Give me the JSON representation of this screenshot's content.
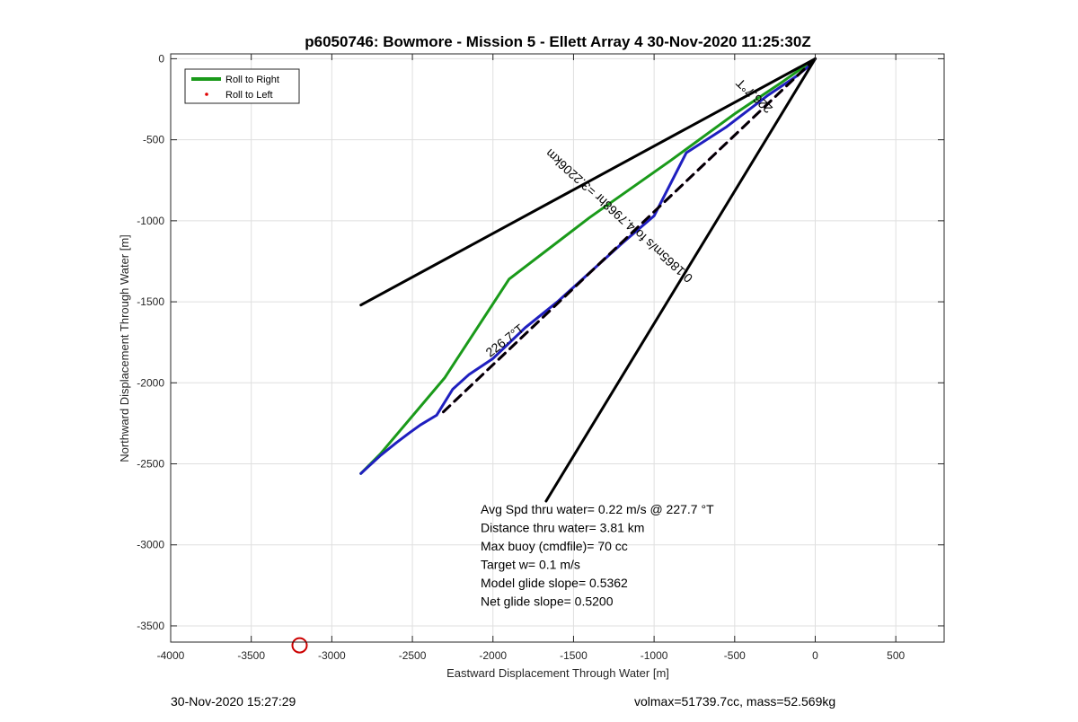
{
  "footer": {
    "timestamp": "30-Nov-2020 15:27:29",
    "volmax_mass": "volmax=51739.7cc, mass=52.569kg"
  },
  "chart_data": {
    "type": "line",
    "title": "p6050746: Bowmore - Mission 5 - Ellett Array 4 30-Nov-2020 11:25:30Z",
    "xlabel": "Eastward Displacement Through Water [m]",
    "ylabel": "Northward Displacement Through Water [m]",
    "xlim": [
      -4000,
      800
    ],
    "ylim": [
      -3600,
      30
    ],
    "xticks": [
      -4000,
      -3500,
      -3000,
      -2500,
      -2000,
      -1500,
      -1000,
      -500,
      0,
      500
    ],
    "yticks": [
      0,
      -500,
      -1000,
      -1500,
      -2000,
      -2500,
      -3000,
      -3500
    ],
    "grid": true,
    "legend": {
      "position": "top-left",
      "entries": [
        {
          "label": "Roll to Right",
          "color": "#1a9a1a",
          "style": "line"
        },
        {
          "label": "Roll to Left",
          "color": "#e00000",
          "style": "dot"
        }
      ]
    },
    "series": [
      {
        "color": "#1a9a1a",
        "style": "solid",
        "x": [
          0,
          -200,
          -500,
          -900,
          -1400,
          -1900,
          -2300,
          -2700,
          -2820
        ],
        "y": [
          0,
          -140,
          -340,
          -630,
          -980,
          -1360,
          -1970,
          -2440,
          -2560
        ]
      },
      {
        "color": "#1f1fbf",
        "style": "solid",
        "x": [
          0,
          -20,
          -120,
          -300,
          -550,
          -800,
          -1000,
          -1200,
          -1400,
          -1600,
          -1800,
          -2000,
          -2150,
          -2250,
          -2350,
          -2450,
          -2520,
          -2600,
          -2700,
          -2820
        ],
        "y": [
          0,
          -30,
          -110,
          -230,
          -420,
          -580,
          -970,
          -1140,
          -1320,
          -1500,
          -1660,
          -1850,
          -1950,
          -2040,
          -2200,
          -2260,
          -2310,
          -2370,
          -2450,
          -2560
        ]
      },
      {
        "color": "#d900d9",
        "style": "dashed",
        "x": [
          0,
          -2330
        ],
        "y": [
          0,
          -2200
        ]
      },
      {
        "color": "#000000",
        "style": "dashed",
        "x": [
          0,
          -2330
        ],
        "y": [
          0,
          -2200
        ]
      },
      {
        "color": "#000000",
        "style": "solid",
        "x": [
          -2820,
          0,
          -1670
        ],
        "y": [
          -1520,
          0,
          -2730
        ]
      }
    ],
    "markers": [
      {
        "x": -3200,
        "y": -3620,
        "color": "#cc0000",
        "shape": "circle"
      }
    ],
    "annotations": [
      {
        "text": "226.7°T",
        "x": -360,
        "y": -210,
        "rotation": 223,
        "color": "#000000"
      },
      {
        "text": "0.1865m/s for4.7968hr =3.2206km",
        "x": -1200,
        "y": -950,
        "rotation": 222,
        "color": "#000000"
      },
      {
        "text": "226.7°T",
        "x": -1910,
        "y": -1760,
        "rotation": -38,
        "color": "#000000"
      }
    ],
    "text_block": [
      "Avg Spd thru water=  0.22 m/s @ 227.7 °T",
      "Distance thru water=  3.81 km",
      "Max buoy (cmdfile)= 70 cc",
      "Target w= 0.1 m/s",
      "Model glide slope= 0.5362",
      "Net glide slope= 0.5200"
    ]
  }
}
